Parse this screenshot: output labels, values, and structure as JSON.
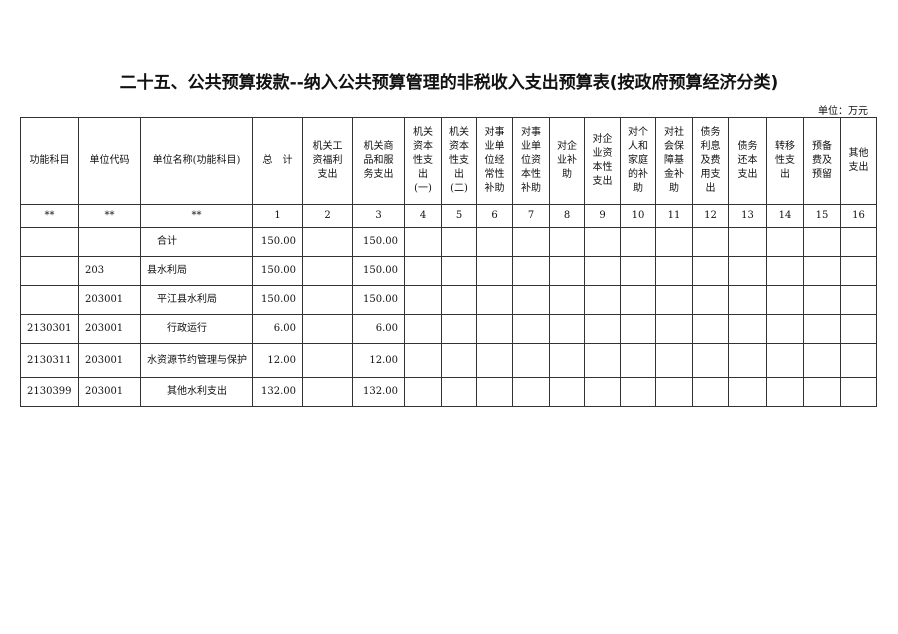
{
  "title": "二十五、公共预算拨款--纳入公共预算管理的非税收入支出预算表(按政府预算经济分类)",
  "unit": "单位：万元",
  "headers": [
    "功能科目",
    "单位代码",
    "单位名称(功能科目)",
    "总　计",
    "机关工\n资福利\n支出",
    "机关商\n品和服\n务支出",
    "机关\n资本\n性支\n出\n(一)",
    "机关\n资本\n性支\n出\n(二)",
    "对事\n业单\n位经\n常性\n补助",
    "对事\n业单\n位资\n本性\n补助",
    "对企\n业补\n助",
    "对企\n业资\n本性\n支出",
    "对个\n人和\n家庭\n的补\n助",
    "对社\n会保\n障基\n金补\n助",
    "债务\n利息\n及费\n用支\n出",
    "债务\n还本\n支出",
    "转移\n性支\n出",
    "预备\n费及\n预留",
    "其他\n支出"
  ],
  "numbers": [
    "**",
    "**",
    "**",
    "1",
    "2",
    "3",
    "4",
    "5",
    "6",
    "7",
    "8",
    "9",
    "10",
    "11",
    "12",
    "13",
    "14",
    "15",
    "16"
  ],
  "rows": [
    {
      "code": "",
      "unit_code": "",
      "name": "合计",
      "total": "150.00",
      "c2": "",
      "c3": "150.00"
    },
    {
      "code": "",
      "unit_code": "203",
      "name": "县水利局",
      "total": "150.00",
      "c2": "",
      "c3": "150.00"
    },
    {
      "code": "",
      "unit_code": "203001",
      "name": "平江县水利局",
      "total": "150.00",
      "c2": "",
      "c3": "150.00"
    },
    {
      "code": "2130301",
      "unit_code": "203001",
      "name": "行政运行",
      "total": "6.00",
      "c2": "",
      "c3": "6.00"
    },
    {
      "code": "2130311",
      "unit_code": "203001",
      "name": "水资源节约管理与保护",
      "total": "12.00",
      "c2": "",
      "c3": "12.00"
    },
    {
      "code": "2130399",
      "unit_code": "203001",
      "name": "其他水利支出",
      "total": "132.00",
      "c2": "",
      "c3": "132.00"
    }
  ]
}
